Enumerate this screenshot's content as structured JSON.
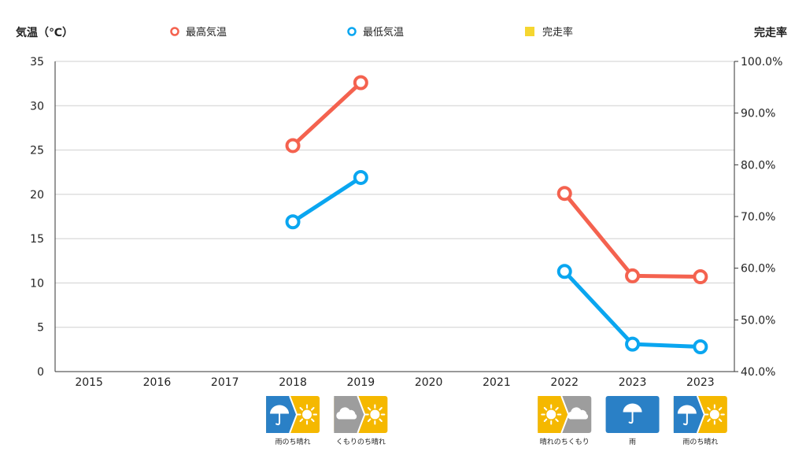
{
  "chart_data": {
    "type": "line",
    "ylabel_left": "気温（℃）",
    "ylabel_right": "完走率",
    "legend": [
      "最高気温",
      "最低気温",
      "完走率"
    ],
    "categories": [
      "2015",
      "2016",
      "2017",
      "2018",
      "2019",
      "2020",
      "2021",
      "2022",
      "2023",
      "2023"
    ],
    "series": [
      {
        "name": "最高気温",
        "color": "#f4624f",
        "values": [
          null,
          null,
          null,
          25.5,
          32.6,
          null,
          null,
          20.1,
          10.8,
          10.7
        ]
      },
      {
        "name": "最低気温",
        "color": "#0aa6f0",
        "values": [
          null,
          null,
          null,
          16.9,
          21.9,
          null,
          null,
          11.3,
          3.1,
          2.8
        ]
      },
      {
        "name": "完走率",
        "color": "#f5d630",
        "values": [
          null,
          null,
          null,
          null,
          null,
          null,
          null,
          null,
          null,
          null
        ]
      }
    ],
    "ylim_left": [
      0,
      35
    ],
    "yticks_left": [
      "0",
      "5",
      "10",
      "15",
      "20",
      "25",
      "30",
      "35"
    ],
    "ylim_right": [
      40,
      100
    ],
    "yticks_right": [
      "40.0%",
      "50.0%",
      "60.0%",
      "70.0%",
      "80.0%",
      "90.0%",
      "100.0%"
    ],
    "grid": true,
    "legend_position": "top",
    "weather": [
      null,
      null,
      null,
      {
        "label": "雨のち晴れ",
        "icons": [
          "umbrella-icon",
          "sun-icon"
        ]
      },
      {
        "label": "くもりのち晴れ",
        "icons": [
          "cloud-icon",
          "sun-icon"
        ]
      },
      null,
      null,
      {
        "label": "晴れのちくもり",
        "icons": [
          "sun-icon",
          "cloud-icon"
        ]
      },
      {
        "label": "雨",
        "icons": [
          "umbrella-icon"
        ]
      },
      {
        "label": "雨のち晴れ",
        "icons": [
          "umbrella-icon",
          "sun-icon"
        ]
      }
    ]
  },
  "colors": {
    "rain": "#2a80c6",
    "sun": "#f5b800",
    "cloud": "#9d9d9d",
    "grid": "#cfcfcf"
  }
}
